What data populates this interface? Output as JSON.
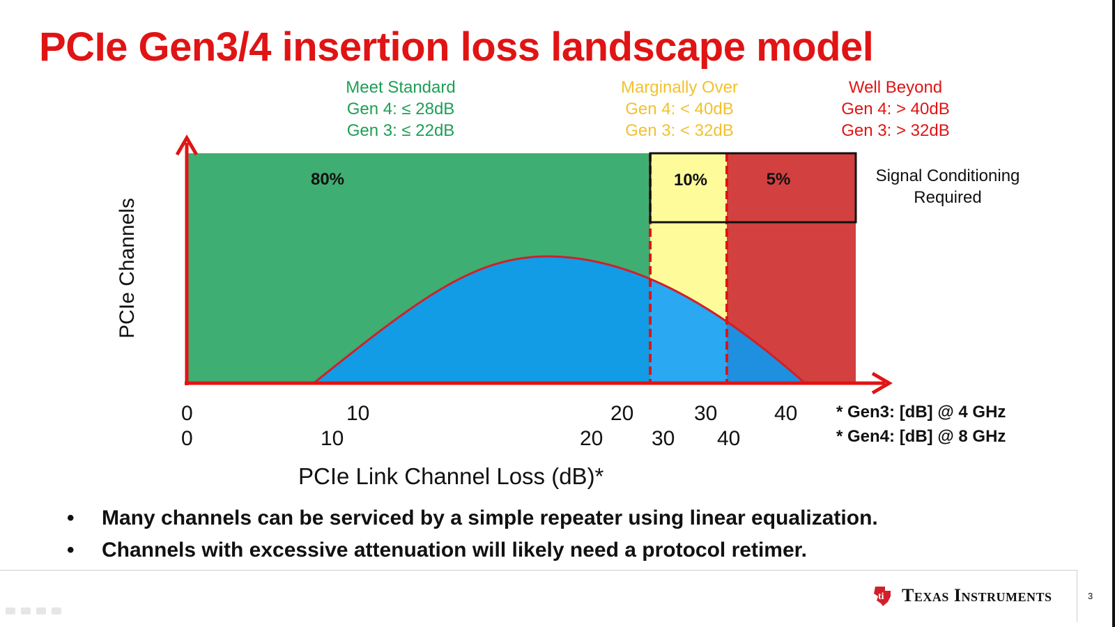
{
  "slide": {
    "title": "PCIe Gen3/4 insertion loss landscape model",
    "page_number": "3",
    "brand": "Texas Instruments"
  },
  "categories": [
    {
      "name": "Meet Standard",
      "gen4": "Gen 4: ≤ 28dB",
      "gen3": "Gen 3: ≤ 22dB",
      "share": "80%",
      "color": "#3fae72"
    },
    {
      "name": "Marginally Over",
      "gen4": "Gen 4: < 40dB",
      "gen3": "Gen 3: < 32dB",
      "share": "10%",
      "color": "#fefc9a"
    },
    {
      "name": "Well Beyond",
      "gen4": "Gen 4: > 40dB",
      "gen3": "Gen 3: > 32dB",
      "share": "5%",
      "color": "#d34040"
    }
  ],
  "signal_conditioning": {
    "line1": "Signal Conditioning",
    "line2": "Required"
  },
  "chart_data": {
    "type": "area",
    "title": "PCIe Gen3/4 insertion loss landscape model",
    "xlabel": "PCIe Link Channel Loss (dB)*",
    "ylabel": "PCIe Channels",
    "gen3_axis": {
      "ticks": [
        "0",
        "10",
        "20",
        "30",
        "40"
      ],
      "values": [
        0,
        10,
        20,
        30,
        40
      ],
      "note": "* Gen3: [dB] @ 4 GHz"
    },
    "gen4_axis": {
      "ticks": [
        "0",
        "10",
        "20",
        "30",
        "40"
      ],
      "values": [
        0,
        10,
        20,
        30,
        40
      ],
      "note": "* Gen4: [dB] @ 8 GHz"
    },
    "regions": [
      {
        "label": "Meet Standard",
        "share_pct": 80,
        "gen3_max_db": 22,
        "gen4_max_db": 28
      },
      {
        "label": "Marginally Over",
        "share_pct": 10,
        "gen3_max_db": 32,
        "gen4_max_db": 40
      },
      {
        "label": "Well Beyond",
        "share_pct": 5
      }
    ],
    "distribution": {
      "shape": "bell",
      "color": "#129ce6"
    }
  },
  "bullets": [
    "Many channels can be serviced by a simple repeater using linear equalization.",
    "Channels with excessive attenuation will likely need a protocol retimer."
  ]
}
